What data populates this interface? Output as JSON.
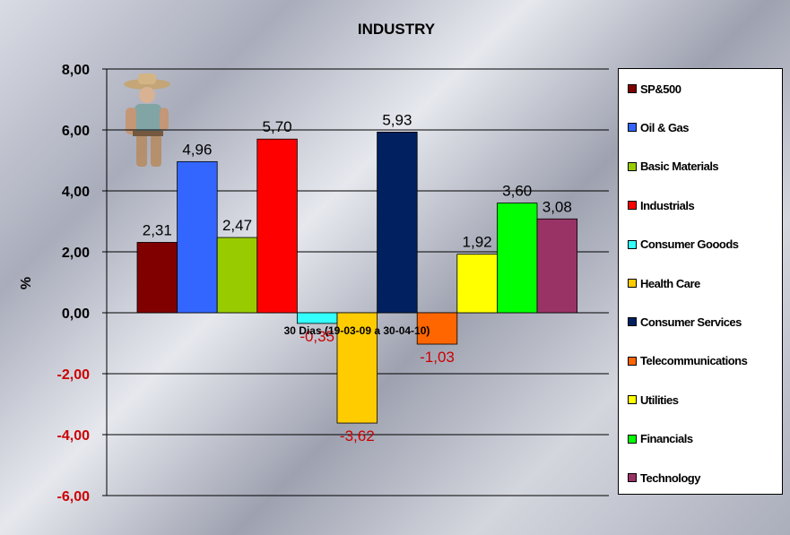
{
  "chart_data": {
    "type": "bar",
    "title": "INDUSTRY",
    "ylabel": "%",
    "xlabel": "30 Dias (19-03-09 a 30-04-10)",
    "ylim": [
      -6,
      8
    ],
    "ytick_values": [
      8,
      6,
      4,
      2,
      0,
      -2,
      -4,
      -6
    ],
    "ytick_labels": [
      "8,00",
      "6,00",
      "4,00",
      "2,00",
      "0,00",
      "-2,00",
      "-4,00",
      "-6,00"
    ],
    "grid": true,
    "legend_position": "right",
    "series": [
      {
        "name": "SP&500",
        "value": 2.31,
        "label": "2,31",
        "color": "#800000"
      },
      {
        "name": "Oil & Gas",
        "value": 4.96,
        "label": "4,96",
        "color": "#3366ff"
      },
      {
        "name": "Basic Materials",
        "value": 2.47,
        "label": "2,47",
        "color": "#99cc00"
      },
      {
        "name": "Industrials",
        "value": 5.7,
        "label": "5,70",
        "color": "#ff0000"
      },
      {
        "name": "Consumer Gooods",
        "value": -0.35,
        "label": "-0,35",
        "color": "#33ffff"
      },
      {
        "name": "Health Care",
        "value": -3.62,
        "label": "-3,62",
        "color": "#ffcc00"
      },
      {
        "name": "Consumer Services",
        "value": 5.93,
        "label": "5,93",
        "color": "#002060"
      },
      {
        "name": "Telecommunications",
        "value": -1.03,
        "label": "-1,03",
        "color": "#ff6600"
      },
      {
        "name": "Utilities",
        "value": 1.92,
        "label": "1,92",
        "color": "#ffff00"
      },
      {
        "name": "Financials",
        "value": 3.6,
        "label": "3,60",
        "color": "#00ff00"
      },
      {
        "name": "Technology",
        "value": 3.08,
        "label": "3,08",
        "color": "#993366"
      }
    ],
    "colors": {
      "negative_label": "#cc0000",
      "positive_label": "#000000"
    }
  }
}
